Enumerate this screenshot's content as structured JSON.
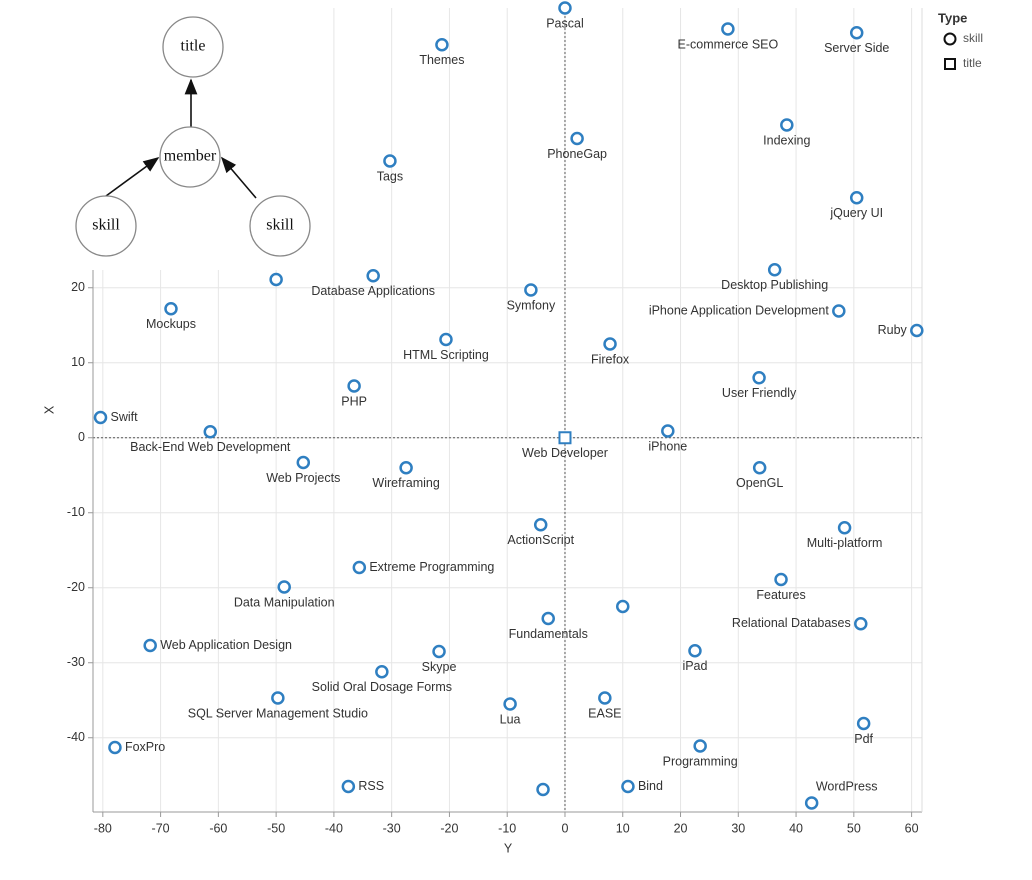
{
  "chart_data": {
    "type": "scatter",
    "x_label": "Y",
    "y_label": "X",
    "xlim": [
      -81.7,
      61.8
    ],
    "ylim": [
      -49.9,
      57.3
    ],
    "xticks": [
      -80,
      -70,
      -60,
      -50,
      -40,
      -30,
      -20,
      -10,
      0,
      10,
      20,
      30,
      40,
      50,
      60
    ],
    "yticks": [
      -40,
      -30,
      -20,
      -10,
      0,
      10,
      20
    ],
    "grid": true,
    "legend_title": "Type",
    "legend_position": "right",
    "series": [
      {
        "name": "skill",
        "marker": "circle",
        "color": "#2f7fc1",
        "labels": [
          "Pascal",
          "Themes",
          "E-commerce SEO",
          "Server Side",
          "Indexing",
          "PhoneGap",
          "Tags",
          "jQuery UI",
          "Desktop Publishing",
          null,
          "Database Applications",
          "Mockups",
          "Symfony",
          "iPhone Application Development",
          "Ruby",
          "HTML Scripting",
          "Firefox",
          "User Friendly",
          "PHP",
          "Swift",
          "Back-End Web Development",
          "iPhone",
          "Web Projects",
          "Wireframing",
          "OpenGL",
          "ActionScript",
          "Multi-platform",
          "Extreme Programming",
          "Features",
          "Data Manipulation",
          null,
          "Fundamentals",
          "Relational Databases",
          "Web Application Design",
          "Skype",
          "iPad",
          "Solid Oral Dosage Forms",
          "SQL Server Management Studio",
          "EASE",
          "Lua",
          "Pdf",
          "FoxPro",
          "Programming",
          "RSS",
          null,
          "Bind",
          "WordPress"
        ],
        "x": [
          0,
          -21.3,
          28.2,
          50.5,
          38.4,
          2.1,
          -30.3,
          50.5,
          36.3,
          -50,
          -33.2,
          -68.2,
          -5.9,
          47.4,
          60.9,
          -20.6,
          7.8,
          33.6,
          -36.5,
          -80.4,
          -61.4,
          17.8,
          -45.3,
          -27.5,
          33.7,
          -4.2,
          48.4,
          -35.6,
          37.4,
          -48.6,
          10,
          -2.9,
          51.2,
          -71.8,
          -21.8,
          22.5,
          -31.7,
          -49.7,
          6.9,
          -9.5,
          51.7,
          -77.9,
          23.4,
          -37.5,
          -3.8,
          10.9,
          42.7
        ],
        "values": [
          57.3,
          52.4,
          54.5,
          54,
          41.7,
          39.9,
          36.9,
          32,
          22.4,
          21.1,
          21.6,
          17.2,
          19.7,
          16.9,
          14.3,
          13.1,
          12.5,
          8,
          6.9,
          2.7,
          0.8,
          0.9,
          -3.3,
          -4,
          -4,
          -11.6,
          -12,
          -17.3,
          -18.9,
          -19.9,
          -22.5,
          -24.1,
          -24.8,
          -27.7,
          -28.5,
          -28.4,
          -31.2,
          -34.7,
          -34.7,
          -35.5,
          -38.1,
          -41.3,
          -41.1,
          -46.5,
          -46.9,
          -46.5,
          -48.7
        ]
      },
      {
        "name": "title",
        "marker": "square",
        "color": "#2f7fc1",
        "labels": [
          "Web Developer"
        ],
        "x": [
          0
        ],
        "values": [
          0
        ]
      }
    ]
  },
  "diagram": {
    "nodes": [
      "title",
      "member",
      "skill",
      "skill"
    ]
  }
}
